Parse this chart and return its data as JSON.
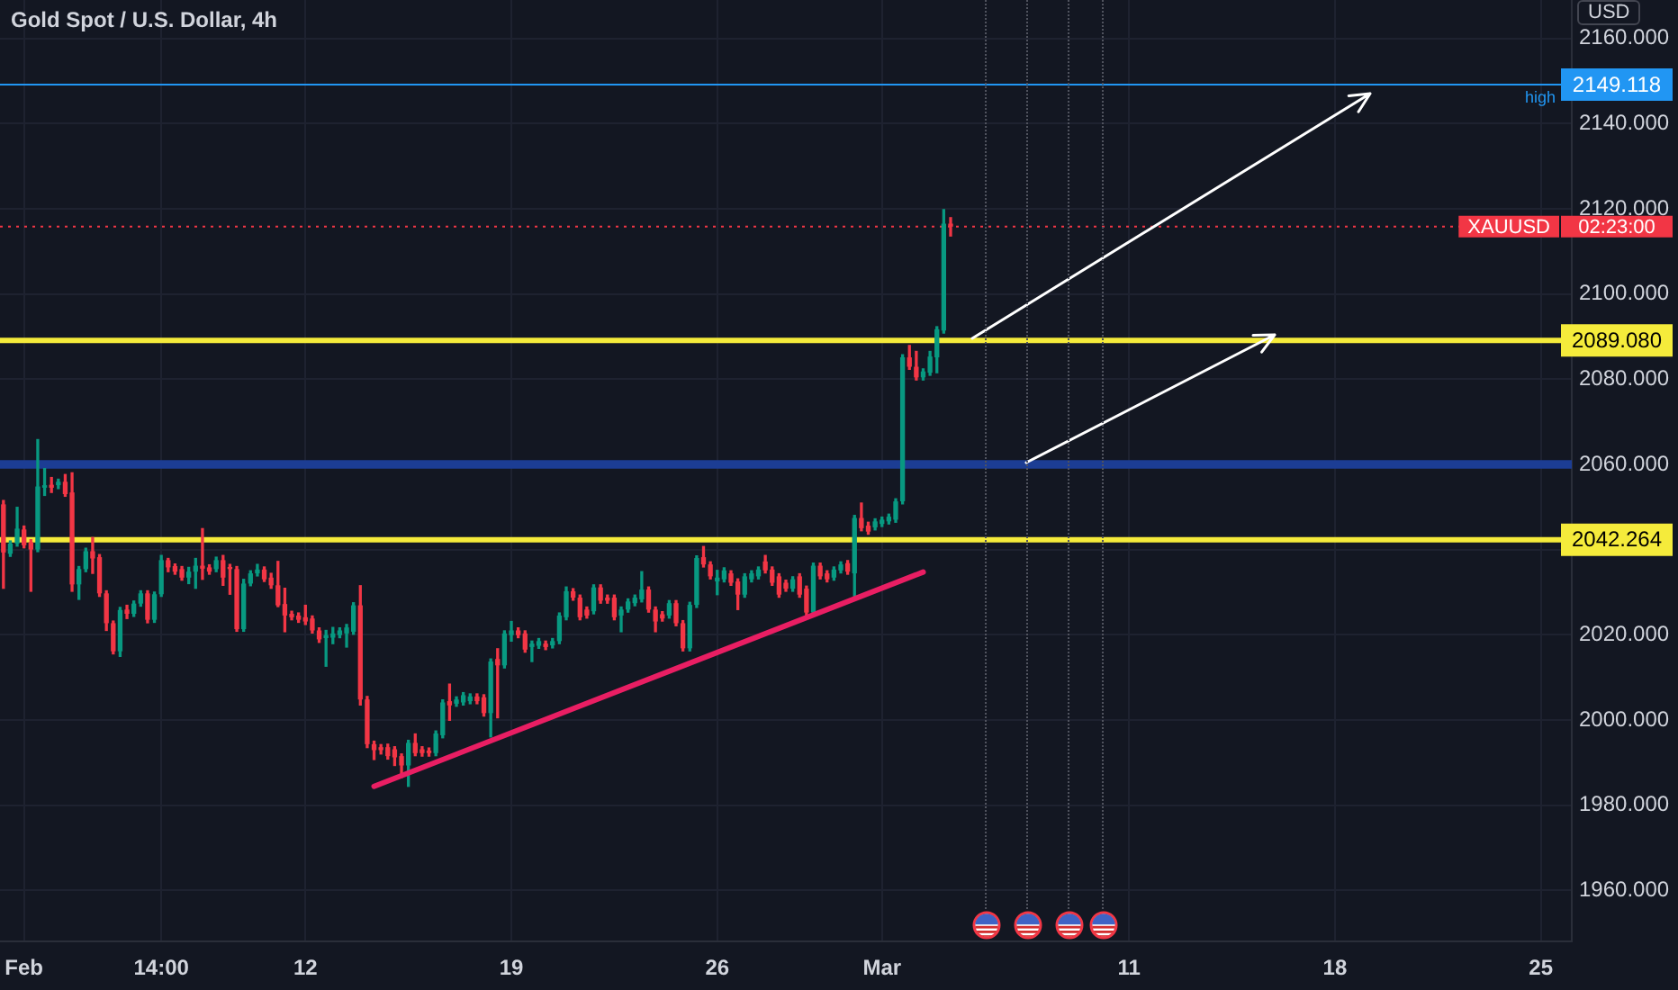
{
  "chart_data": {
    "type": "candlestick",
    "title": "Gold Spot / U.S. Dollar, 4h",
    "ylabel": "USD",
    "categories": [
      null,
      null,
      null,
      "Feb",
      null,
      null,
      null,
      null,
      null,
      null,
      null,
      null,
      null,
      null,
      null,
      null,
      null,
      null,
      null,
      null,
      null,
      null,
      null,
      "14:00",
      null,
      null,
      null,
      null,
      null,
      null,
      null,
      null,
      null,
      null,
      null,
      null,
      null,
      null,
      null,
      null,
      null,
      null,
      null,
      null,
      "12",
      null,
      null,
      null,
      null,
      null,
      null,
      null,
      null,
      null,
      null,
      null,
      null,
      null,
      null,
      null,
      null,
      null,
      null,
      null,
      null,
      null,
      null,
      null,
      null,
      null,
      null,
      null,
      null,
      null,
      "19",
      null,
      null,
      null,
      null,
      null,
      null,
      null,
      null,
      null,
      null,
      null,
      null,
      null,
      null,
      null,
      null,
      null,
      null,
      null,
      null,
      null,
      null,
      null,
      null,
      null,
      null,
      null,
      null,
      null,
      "26",
      null,
      null,
      null,
      null,
      null,
      null,
      null,
      null,
      null,
      null,
      null,
      null,
      null,
      null,
      null,
      null,
      null,
      null,
      null,
      null,
      null,
      null,
      null,
      "Mar",
      null,
      null,
      null,
      null,
      null,
      null,
      null,
      null,
      null,
      null,
      null,
      null,
      null,
      null,
      null,
      null,
      null,
      null,
      null,
      null,
      null,
      null,
      null,
      null,
      null,
      null,
      null,
      null,
      null,
      null,
      null,
      null,
      null,
      null,
      null,
      "11",
      null,
      null,
      null,
      null,
      null,
      null,
      null,
      null,
      null,
      null,
      null,
      null,
      null,
      null,
      null,
      null,
      null,
      null,
      null,
      null,
      null,
      null,
      null,
      null,
      null,
      null,
      null,
      null,
      null,
      "18",
      null,
      null,
      null,
      null,
      null,
      null,
      null,
      null,
      null,
      null,
      null,
      null,
      null,
      null,
      null,
      null,
      null,
      null,
      null,
      null,
      null,
      null,
      null,
      null,
      null,
      null,
      null,
      null,
      null,
      "25",
      null,
      null,
      null,
      null
    ],
    "ohlc": [
      [
        2050.6,
        2051.5,
        2030.9,
        2039.3
      ],
      [
        2039.0,
        2042.0,
        2038.4,
        2041.4
      ],
      [
        2041.4,
        2049.9,
        2040.8,
        2044.9
      ],
      [
        2044.7,
        2045.5,
        2040.4,
        2041.0
      ],
      [
        2041.7,
        2042.3,
        2030.2,
        2040.0
      ],
      [
        2040.0,
        2065.8,
        2039.5,
        2054.8
      ],
      [
        2054.5,
        2059.0,
        2052.7,
        2055.1
      ],
      [
        2055.2,
        2056.9,
        2053.4,
        2054.5
      ],
      [
        2055.1,
        2056.5,
        2054.3,
        2055.9
      ],
      [
        2055.9,
        2057.6,
        2052.5,
        2053.0
      ],
      [
        2053.4,
        2058.0,
        2030.2,
        2031.8
      ],
      [
        2031.8,
        2036.0,
        2028.3,
        2035.4
      ],
      [
        2035.4,
        2040.3,
        2034.8,
        2039.6
      ],
      [
        2039.6,
        2042.8,
        2034.4,
        2037.9
      ],
      [
        2038.2,
        2038.8,
        2029.0,
        2029.7
      ],
      [
        2029.7,
        2030.3,
        2021.0,
        2022.7
      ],
      [
        2022.7,
        2023.2,
        2015.5,
        2016.1
      ],
      [
        2016.1,
        2026.4,
        2014.9,
        2025.8
      ],
      [
        2025.9,
        2026.9,
        2023.8,
        2024.9
      ],
      [
        2024.9,
        2027.9,
        2024.3,
        2027.3
      ],
      [
        2027.3,
        2030.3,
        2026.7,
        2029.7
      ],
      [
        2029.7,
        2030.3,
        2022.8,
        2023.5
      ],
      [
        2023.5,
        2030.0,
        2022.9,
        2029.5
      ],
      [
        2029.5,
        2038.6,
        2029.0,
        2037.5
      ],
      [
        2037.5,
        2037.9,
        2034.8,
        2035.8
      ],
      [
        2036.1,
        2036.6,
        2034.2,
        2034.8
      ],
      [
        2035.4,
        2036.0,
        2032.8,
        2033.4
      ],
      [
        2033.4,
        2035.8,
        2032.0,
        2034.8
      ],
      [
        2034.8,
        2037.9,
        2030.9,
        2036.2
      ],
      [
        2036.2,
        2044.9,
        2033.0,
        2035.5
      ],
      [
        2035.8,
        2036.4,
        2034.2,
        2034.8
      ],
      [
        2035.4,
        2038.2,
        2034.8,
        2037.5
      ],
      [
        2037.5,
        2038.6,
        2031.6,
        2033.4
      ],
      [
        2035.9,
        2036.5,
        2029.5,
        2035.4
      ],
      [
        2035.4,
        2036.0,
        2020.8,
        2021.3
      ],
      [
        2021.3,
        2033.0,
        2020.8,
        2032.0
      ],
      [
        2032.0,
        2035.0,
        2031.5,
        2034.4
      ],
      [
        2034.4,
        2036.5,
        2033.8,
        2035.3
      ],
      [
        2035.3,
        2035.9,
        2032.5,
        2033.0
      ],
      [
        2033.4,
        2034.4,
        2030.9,
        2031.6
      ],
      [
        2031.6,
        2037.2,
        2026.6,
        2026.9
      ],
      [
        2027.2,
        2030.9,
        2020.7,
        2024.5
      ],
      [
        2024.9,
        2025.5,
        2023.5,
        2024.1
      ],
      [
        2024.5,
        2025.1,
        2022.9,
        2023.5
      ],
      [
        2024.1,
        2026.9,
        2022.4,
        2023.1
      ],
      [
        2023.8,
        2024.4,
        2020.4,
        2021.0
      ],
      [
        2021.0,
        2021.6,
        2018.2,
        2018.9
      ],
      [
        2019.2,
        2021.0,
        2012.6,
        2019.9
      ],
      [
        2019.3,
        2021.7,
        2017.9,
        2020.3
      ],
      [
        2019.9,
        2021.6,
        2019.3,
        2021.0
      ],
      [
        2020.3,
        2022.4,
        2017.1,
        2021.7
      ],
      [
        2020.7,
        2027.5,
        2020.1,
        2026.9
      ],
      [
        2026.9,
        2031.5,
        2003.5,
        2004.8
      ],
      [
        2004.8,
        2005.5,
        1993.5,
        1994.3
      ],
      [
        1994.3,
        1995.0,
        1990.7,
        1992.9
      ],
      [
        1993.6,
        1994.2,
        1992.0,
        1992.9
      ],
      [
        1993.6,
        1994.3,
        1990.8,
        1991.5
      ],
      [
        1993.1,
        1993.7,
        1989.3,
        1991.2
      ],
      [
        1991.5,
        1992.0,
        1986.5,
        1989.3
      ],
      [
        1989.3,
        1995.2,
        1984.4,
        1994.6
      ],
      [
        1994.6,
        1996.7,
        1991.6,
        1992.2
      ],
      [
        1993.1,
        1993.7,
        1991.5,
        1992.2
      ],
      [
        1992.8,
        1993.4,
        1991.5,
        1992.2
      ],
      [
        1992.2,
        1997.4,
        1991.6,
        1996.8
      ],
      [
        1996.4,
        2004.7,
        1995.8,
        2004.1
      ],
      [
        2004.4,
        2008.4,
        1999.9,
        2003.4
      ],
      [
        2003.8,
        2005.4,
        2003.2,
        2004.8
      ],
      [
        2004.1,
        2006.4,
        2003.5,
        2005.8
      ],
      [
        2004.4,
        2006.1,
        2003.8,
        2005.5
      ],
      [
        2005.5,
        2006.1,
        2003.8,
        2004.4
      ],
      [
        2005.3,
        2005.9,
        2000.9,
        2001.6
      ],
      [
        2001.6,
        2014.3,
        1996.0,
        2013.7
      ],
      [
        2014.3,
        2016.7,
        2000.5,
        2012.8
      ],
      [
        2012.8,
        2020.9,
        2012.2,
        2020.3
      ],
      [
        2019.9,
        2023.1,
        2018.5,
        2021.0
      ],
      [
        2021.0,
        2021.6,
        2019.3,
        2019.9
      ],
      [
        2020.3,
        2020.9,
        2015.9,
        2016.5
      ],
      [
        2017.1,
        2018.5,
        2013.7,
        2017.9
      ],
      [
        2017.4,
        2019.1,
        2016.8,
        2018.5
      ],
      [
        2017.9,
        2018.5,
        2016.5,
        2017.1
      ],
      [
        2017.5,
        2019.1,
        2016.9,
        2018.5
      ],
      [
        2018.5,
        2025.1,
        2017.9,
        2024.5
      ],
      [
        2024.1,
        2031.2,
        2023.5,
        2030.2
      ],
      [
        2030.2,
        2030.8,
        2028.1,
        2028.7
      ],
      [
        2028.7,
        2029.3,
        2023.5,
        2024.1
      ],
      [
        2025.9,
        2026.5,
        2023.9,
        2024.5
      ],
      [
        2025.5,
        2031.7,
        2024.9,
        2031.1
      ],
      [
        2031.1,
        2031.7,
        2027.4,
        2028.0
      ],
      [
        2028.7,
        2029.3,
        2027.4,
        2028.0
      ],
      [
        2028.7,
        2029.3,
        2023.5,
        2024.1
      ],
      [
        2024.5,
        2026.5,
        2020.7,
        2025.9
      ],
      [
        2025.9,
        2028.4,
        2025.3,
        2027.8
      ],
      [
        2027.4,
        2029.3,
        2026.8,
        2028.7
      ],
      [
        2028.3,
        2034.8,
        2027.7,
        2030.6
      ],
      [
        2030.6,
        2031.2,
        2025.3,
        2025.9
      ],
      [
        2025.9,
        2026.5,
        2020.7,
        2023.1
      ],
      [
        2024.8,
        2025.4,
        2023.2,
        2023.8
      ],
      [
        2024.5,
        2028.0,
        2023.9,
        2027.4
      ],
      [
        2027.4,
        2028.0,
        2022.1,
        2022.7
      ],
      [
        2022.7,
        2023.3,
        2016.2,
        2016.8
      ],
      [
        2016.8,
        2027.6,
        2016.2,
        2027.0
      ],
      [
        2027.0,
        2038.5,
        2026.4,
        2038.0
      ],
      [
        2038.2,
        2040.7,
        2035.9,
        2036.5
      ],
      [
        2036.5,
        2037.1,
        2033.1,
        2033.7
      ],
      [
        2032.5,
        2035.1,
        2029.4,
        2033.4
      ],
      [
        2033.0,
        2035.7,
        2032.4,
        2035.1
      ],
      [
        2034.4,
        2035.0,
        2031.6,
        2032.2
      ],
      [
        2032.5,
        2033.1,
        2025.9,
        2029.4
      ],
      [
        2029.4,
        2034.3,
        2028.8,
        2033.7
      ],
      [
        2033.0,
        2035.0,
        2032.4,
        2034.4
      ],
      [
        2033.7,
        2035.9,
        2033.1,
        2035.3
      ],
      [
        2037.2,
        2038.6,
        2034.5,
        2035.1
      ],
      [
        2035.3,
        2035.9,
        2031.6,
        2032.2
      ],
      [
        2033.7,
        2034.3,
        2028.8,
        2029.4
      ],
      [
        2032.2,
        2032.8,
        2030.2,
        2030.8
      ],
      [
        2030.8,
        2033.6,
        2030.2,
        2033.0
      ],
      [
        2033.7,
        2034.3,
        2028.8,
        2029.4
      ],
      [
        2030.8,
        2031.4,
        2024.6,
        2025.2
      ],
      [
        2025.2,
        2036.8,
        2024.6,
        2036.2
      ],
      [
        2036.2,
        2036.8,
        2033.1,
        2033.7
      ],
      [
        2034.4,
        2035.0,
        2032.4,
        2033.0
      ],
      [
        2033.4,
        2035.9,
        2032.8,
        2035.3
      ],
      [
        2035.1,
        2037.1,
        2034.5,
        2036.5
      ],
      [
        2036.8,
        2037.4,
        2034.2,
        2034.8
      ],
      [
        2034.4,
        2048.0,
        2028.7,
        2047.4
      ],
      [
        2047.4,
        2050.9,
        2044.4,
        2045.0
      ],
      [
        2045.6,
        2046.4,
        2043.6,
        2044.2
      ],
      [
        2045.2,
        2047.2,
        2044.6,
        2046.6
      ],
      [
        2046.0,
        2047.6,
        2045.4,
        2047.0
      ],
      [
        2046.6,
        2048.3,
        2046.0,
        2047.7
      ],
      [
        2047.0,
        2051.9,
        2046.4,
        2051.3
      ],
      [
        2051.3,
        2085.7,
        2050.7,
        2085.1
      ],
      [
        2085.1,
        2087.9,
        2082.3,
        2082.9
      ],
      [
        2082.9,
        2086.5,
        2079.8,
        2080.4
      ],
      [
        2080.4,
        2082.4,
        2079.8,
        2081.8
      ],
      [
        2081.5,
        2086.5,
        2080.9,
        2085.3
      ],
      [
        2085.1,
        2092.3,
        2081.5,
        2091.7
      ],
      [
        2091.4,
        2119.8,
        2090.8,
        2116.5
      ],
      [
        2116.5,
        2117.9,
        2113.6,
        2115.8
      ],
      null,
      null,
      null,
      null,
      null,
      null,
      null,
      null,
      null,
      null,
      null,
      null,
      null,
      null,
      null,
      null,
      null,
      null,
      null,
      null,
      null,
      null,
      null,
      null,
      null,
      null,
      null,
      null,
      null,
      null,
      null,
      null,
      null,
      null,
      null,
      null,
      null,
      null,
      null,
      null,
      null,
      null,
      null,
      null,
      null,
      null,
      null,
      null,
      null,
      null,
      null,
      null,
      null,
      null,
      null,
      null,
      null,
      null,
      null,
      null,
      null,
      null,
      null,
      null,
      null,
      null,
      null,
      null,
      null,
      null,
      null,
      null,
      null,
      null,
      null,
      null,
      null,
      null,
      null,
      null,
      null,
      null,
      null,
      null,
      null,
      null,
      null,
      null,
      null,
      null
    ],
    "series": [
      {
        "type": "line",
        "color": "#e91e63",
        "values": [
          null,
          null,
          null,
          null,
          null,
          null,
          null,
          null,
          null,
          null,
          null,
          null,
          null,
          null,
          null,
          null,
          null,
          null,
          null,
          null,
          null,
          null,
          null,
          null,
          null,
          null,
          null,
          null,
          null,
          null,
          null,
          null,
          null,
          null,
          null,
          null,
          null,
          null,
          null,
          null,
          null,
          null,
          null,
          null,
          null,
          null,
          null,
          null,
          null,
          null,
          null,
          null,
          null,
          null,
          1984.4,
          null,
          null,
          null,
          null,
          null,
          null,
          null,
          null,
          null,
          null,
          null,
          null,
          null,
          null,
          null,
          null,
          null,
          null,
          null,
          null,
          null,
          null,
          null,
          null,
          null,
          null,
          null,
          null,
          null,
          null,
          null,
          null,
          null,
          null,
          null,
          null,
          null,
          null,
          null,
          null,
          null,
          null,
          null,
          null,
          null,
          null,
          null,
          null,
          null,
          null,
          null,
          null,
          null,
          null,
          null,
          null,
          null,
          null,
          null,
          null,
          null,
          null,
          null,
          null,
          null,
          null,
          null,
          null,
          null,
          null,
          null,
          null,
          null,
          null,
          null,
          null,
          null,
          null,
          null,
          2034.7,
          null,
          null,
          null,
          null,
          null,
          null,
          null,
          null,
          null,
          null,
          null,
          null,
          null,
          null,
          null,
          null,
          null,
          null,
          null,
          null,
          null,
          null,
          null,
          null,
          null,
          null,
          null,
          null,
          null,
          null,
          null,
          null,
          null,
          null,
          null,
          null,
          null,
          null,
          null,
          null,
          null,
          null,
          null,
          null,
          null,
          null,
          null,
          null,
          null,
          null,
          null,
          null,
          null,
          null,
          null,
          null,
          null,
          null,
          null,
          null,
          null,
          null,
          null,
          null,
          null,
          null,
          null,
          null,
          null,
          null,
          null,
          null,
          null,
          null,
          null,
          null,
          null,
          null,
          null,
          null,
          null,
          null,
          null,
          null,
          null,
          null,
          null,
          null,
          null,
          null,
          null,
          null,
          null,
          null
        ]
      }
    ],
    "ylim": [
      1948,
      2169
    ],
    "yticks": [
      {
        "value": 1960,
        "label": "1960.000"
      },
      {
        "value": 1980,
        "label": "1980.000"
      },
      {
        "value": 2000,
        "label": "2000.000"
      },
      {
        "value": 2020,
        "label": "2020.000"
      },
      {
        "value": 2040,
        "label": null
      },
      {
        "value": 2060,
        "label": "2060.000"
      },
      {
        "value": 2080,
        "label": "2080.000"
      },
      {
        "value": 2100,
        "label": "2100.000"
      },
      {
        "value": 2120,
        "label": "2120.000"
      },
      {
        "value": 2140,
        "label": "2140.000"
      },
      {
        "value": 2160,
        "label": "2160.000"
      }
    ],
    "grid": true,
    "ref_lines": [
      {
        "axis": "y",
        "value": 2149.118,
        "label": "2149.118",
        "color": "#2196f3",
        "line_style": "solid"
      },
      {
        "axis": "y",
        "value": 2089.08,
        "label": "2089.080",
        "color": "#f5eb3b",
        "line_style": "solid"
      },
      {
        "axis": "y",
        "value": 2042.264,
        "label": "2042.264",
        "color": "#f5eb3b",
        "line_style": "solid"
      },
      {
        "axis": "y",
        "value": 2115.8,
        "label": "XAUUSD",
        "color": "#f23645",
        "line_style": "dotted"
      }
    ],
    "bands": [
      {
        "axis": "y",
        "from": 2059,
        "to": 2061,
        "color": "#1c3d94"
      }
    ],
    "annotations": [
      "high",
      "02:23:00"
    ]
  }
}
